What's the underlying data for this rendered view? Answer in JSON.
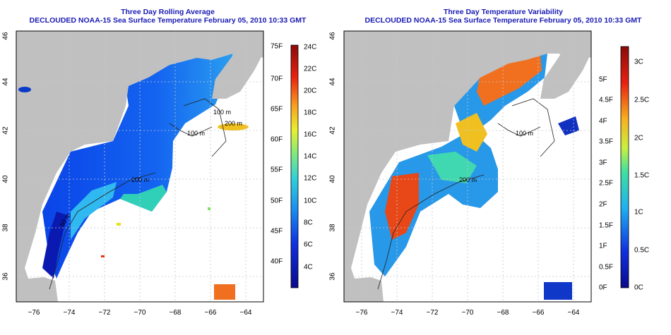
{
  "left": {
    "title1": "Three Day Rolling Average",
    "title2": "DECLOUDED NOAA-15 Sea Surface Temperature February 05, 2010 10:33 GMT",
    "colorbar": {
      "f_labels": [
        "75F",
        "70F",
        "65F",
        "60F",
        "55F",
        "50F",
        "45F",
        "40F"
      ],
      "c_labels": [
        "24C",
        "22C",
        "20C",
        "18C",
        "16C",
        "14C",
        "12C",
        "10C",
        "8C",
        "6C",
        "4C"
      ]
    }
  },
  "right": {
    "title1": "Three Day Temperature Variability",
    "title2": "DECLOUDED NOAA-15 Sea Surface Temperature February 05, 2010 10:33 GMT",
    "colorbar": {
      "f_labels": [
        "5F",
        "4.5F",
        "4F",
        "3.5F",
        "3F",
        "2.5F",
        "2F",
        "1.5F",
        "1F",
        "0.5F",
        "0F"
      ],
      "c_labels": [
        "3C",
        "2.5C",
        "2C",
        "1.5C",
        "1C",
        "0.5C",
        "0C"
      ]
    }
  },
  "axes": {
    "lat_labels": [
      "46",
      "44",
      "42",
      "40",
      "38",
      "36"
    ],
    "lon_labels": [
      "−76",
      "−74",
      "−72",
      "−70",
      "−68",
      "−66",
      "−64"
    ]
  },
  "contour_labels": [
    "100 m",
    "200 m",
    "50 m",
    "200 m",
    "100 m",
    "200 m"
  ],
  "colors": {
    "title": "#1a1ab4",
    "land": "#c0c0c0",
    "ocean": "#ffffff",
    "grid": "#c8c8c8"
  }
}
